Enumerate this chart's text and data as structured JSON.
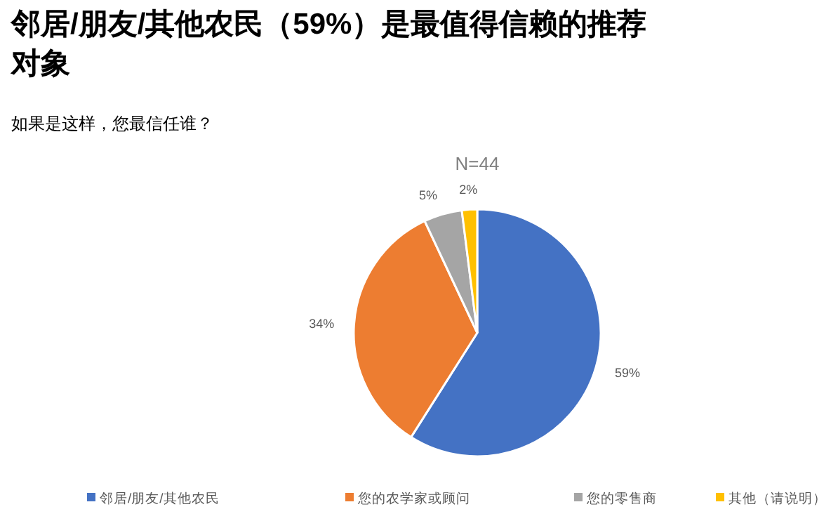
{
  "chart_data": {
    "type": "pie",
    "title": "邻居/朋友/其他农民（59%）是最值得信赖的推荐对象",
    "subtitle": "如果是这样，您最信任谁？",
    "annotations": [
      "N=44"
    ],
    "categories": [
      "邻居/朋友/其他农民",
      "您的农学家或顾问",
      "您的零售商",
      "其他（请说明）"
    ],
    "values": [
      59,
      34,
      5,
      2
    ],
    "value_labels": [
      "59%",
      "34%",
      "5%",
      "2%"
    ],
    "colors": [
      "#4472c4",
      "#ed7d31",
      "#a5a5a5",
      "#ffc000"
    ],
    "legend": "bottom"
  }
}
